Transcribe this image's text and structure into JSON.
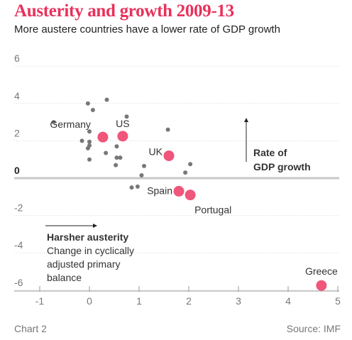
{
  "title": "Austerity and growth 2009-13",
  "subtitle": "More austere countries have a lower rate of GDP growth",
  "footer": {
    "left": "Chart 2",
    "right": "Source: IMF"
  },
  "annotations": {
    "austerity_head": "Harsher austerity",
    "austerity_line1": "Change in cyclically",
    "austerity_line2": "adjusted primary",
    "austerity_line3": "balance",
    "gdp_line1": "Rate of",
    "gdp_line2": "GDP growth"
  },
  "colors": {
    "title": "#e8315b",
    "highlight": "#f0557a",
    "dot": "#777777",
    "grid": "#d9d9d9",
    "zero_line": "#c8c8c8"
  },
  "chart_data": {
    "type": "scatter",
    "title": "Austerity and growth 2009-13",
    "subtitle": "More austere countries have a lower rate of GDP growth",
    "xlabel": "Harsher austerity — Change in cyclically adjusted primary balance",
    "ylabel": "Rate of GDP growth",
    "xlim": [
      -1,
      5
    ],
    "ylim": [
      -6.5,
      6
    ],
    "x_ticks": [
      -1,
      0,
      1,
      2,
      3,
      4,
      5
    ],
    "y_ticks": [
      -6,
      -4,
      -2,
      0,
      2,
      4,
      6
    ],
    "grid": "horizontal",
    "highlighted": [
      {
        "name": "Germany",
        "x": 0.27,
        "y": 2.2
      },
      {
        "name": "US",
        "x": 0.67,
        "y": 2.25
      },
      {
        "name": "UK",
        "x": 1.6,
        "y": 1.2
      },
      {
        "name": "Spain",
        "x": 1.8,
        "y": -0.7
      },
      {
        "name": "Portugal",
        "x": 2.03,
        "y": -0.9
      },
      {
        "name": "Greece",
        "x": 4.67,
        "y": -5.75
      }
    ],
    "others": [
      {
        "x": -0.72,
        "y": 3.0
      },
      {
        "x": -0.03,
        "y": 4.0
      },
      {
        "x": 0.35,
        "y": 4.2
      },
      {
        "x": 0.07,
        "y": 3.65
      },
      {
        "x": 0.75,
        "y": 3.3
      },
      {
        "x": -0.15,
        "y": 2.0
      },
      {
        "x": 0.0,
        "y": 2.5
      },
      {
        "x": 0.0,
        "y": 1.95
      },
      {
        "x": 0.0,
        "y": 1.75
      },
      {
        "x": -0.03,
        "y": 1.6
      },
      {
        "x": 0.55,
        "y": 1.7
      },
      {
        "x": 0.33,
        "y": 1.35
      },
      {
        "x": 0.55,
        "y": 1.1
      },
      {
        "x": 0.62,
        "y": 1.1
      },
      {
        "x": 0.0,
        "y": 1.0
      },
      {
        "x": 0.53,
        "y": 0.7
      },
      {
        "x": 1.1,
        "y": 0.65
      },
      {
        "x": 1.05,
        "y": 0.15
      },
      {
        "x": 1.58,
        "y": 2.6
      },
      {
        "x": 2.03,
        "y": 0.75
      },
      {
        "x": 1.93,
        "y": 0.3
      },
      {
        "x": 0.85,
        "y": -0.5
      },
      {
        "x": 0.97,
        "y": -0.45
      }
    ]
  }
}
